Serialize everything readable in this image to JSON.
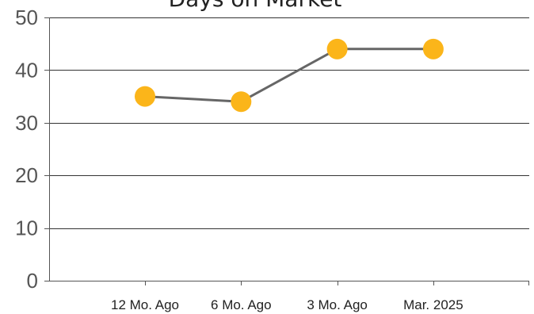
{
  "chart_data": {
    "type": "line",
    "title": "Days on Market",
    "xlabel": "",
    "ylabel": "",
    "categories": [
      "12 Mo. Ago",
      "6 Mo. Ago",
      "3 Mo. Ago",
      "Mar. 2025"
    ],
    "series": [
      {
        "values": [
          35,
          34,
          44,
          44
        ],
        "line_color": "#666666",
        "marker_color": "#FBB51A"
      }
    ],
    "ylim": [
      0,
      50
    ],
    "yticks": [
      0,
      10,
      20,
      30,
      40,
      50
    ],
    "grid": true,
    "legend": "none"
  }
}
